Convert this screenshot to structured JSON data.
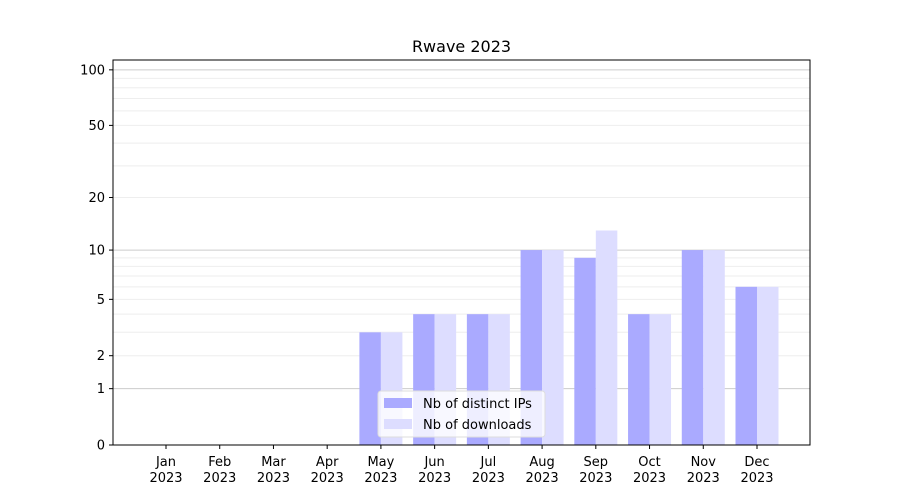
{
  "chart_data": {
    "type": "bar",
    "title": "Rwave 2023",
    "xlabel": "",
    "ylabel": "",
    "yscale": "log(1+y)",
    "ylim": [
      0,
      113
    ],
    "yticks": [
      0,
      1,
      2,
      5,
      10,
      20,
      50,
      100
    ],
    "grid": true,
    "legend_position": "lower center",
    "categories": [
      "Jan\n2023",
      "Feb\n2023",
      "Mar\n2023",
      "Apr\n2023",
      "May\n2023",
      "Jun\n2023",
      "Jul\n2023",
      "Aug\n2023",
      "Sep\n2023",
      "Oct\n2023",
      "Nov\n2023",
      "Dec\n2023"
    ],
    "series": [
      {
        "name": "Nb of distinct IPs",
        "color": "#aaaaff",
        "values": [
          0,
          0,
          0,
          0,
          3,
          4,
          4,
          10,
          9,
          4,
          10,
          6
        ]
      },
      {
        "name": "Nb of downloads",
        "color": "#ddddff",
        "values": [
          0,
          0,
          0,
          0,
          3,
          4,
          4,
          10,
          13,
          4,
          10,
          6
        ]
      }
    ]
  }
}
